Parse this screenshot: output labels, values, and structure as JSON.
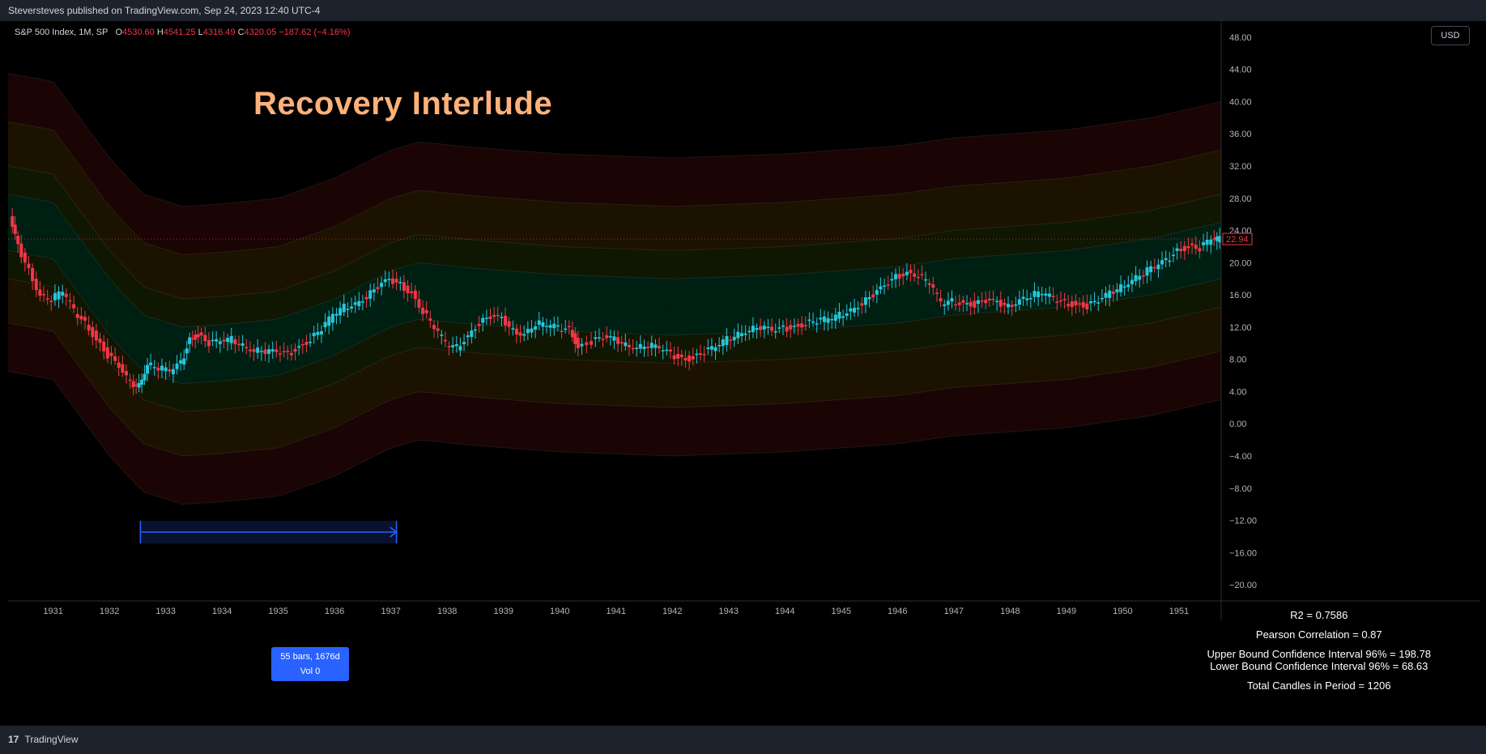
{
  "header": {
    "publisher_line": "Steversteves published on TradingView.com, Sep 24, 2023 12:40 UTC-4"
  },
  "legend": {
    "symbol": "S&P 500 Index, 1M, SP",
    "o_label": "O",
    "o_value": "4530.60",
    "h_label": "H",
    "h_value": "4541.25",
    "l_label": "L",
    "l_value": "4316.49",
    "c_label": "C",
    "c_value": "4320.05",
    "change": "−187.62 (−4.16%)"
  },
  "toolbar": {
    "currency": "USD"
  },
  "annotation": {
    "title": "Recovery Interlude"
  },
  "measure": {
    "bars_line": "55 bars, 1676d",
    "vol_line": "Vol 0"
  },
  "stats": {
    "r2": "R2 = 0.7586",
    "pearson": "Pearson Correlation = 0.87",
    "upper_ci": "Upper Bound Confidence Interval 96% = 198.78",
    "lower_ci": "Lower Bound Confidence Interval 96% = 68.63",
    "total": "Total Candles in Period = 1206"
  },
  "footer": {
    "brand": "TradingView",
    "logo_mark": "17"
  },
  "colors": {
    "up": "#26c6da",
    "down": "#f23645",
    "price_tag": "#f23645"
  },
  "chart_data": {
    "type": "candlestick",
    "title": "S&P 500 Index, 1M, SP",
    "ylim": [
      -22,
      50
    ],
    "xlim": [
      1930.2,
      1951.75
    ],
    "y_ticks": [
      "48.00",
      "44.00",
      "40.00",
      "36.00",
      "32.00",
      "28.00",
      "24.00",
      "20.00",
      "16.00",
      "12.00",
      "8.00",
      "4.00",
      "0.00",
      "−4.00",
      "−8.00",
      "−12.00",
      "−16.00",
      "−20.00"
    ],
    "y_tick_values": [
      48,
      44,
      40,
      36,
      32,
      28,
      24,
      20,
      16,
      12,
      8,
      4,
      0,
      -4,
      -8,
      -12,
      -16,
      -20
    ],
    "x_ticks": [
      "1931",
      "1932",
      "1933",
      "1934",
      "1935",
      "1936",
      "1937",
      "1938",
      "1939",
      "1940",
      "1941",
      "1942",
      "1943",
      "1944",
      "1945",
      "1946",
      "1947",
      "1948",
      "1949",
      "1950",
      "1951"
    ],
    "x_tick_values": [
      1931,
      1932,
      1933,
      1934,
      1935,
      1936,
      1937,
      1938,
      1939,
      1940,
      1941,
      1942,
      1943,
      1944,
      1945,
      1946,
      1947,
      1948,
      1949,
      1950,
      1951
    ],
    "last_price": "22.94",
    "last_price_value": 22.94,
    "close_path": [
      [
        1930.25,
        25.5
      ],
      [
        1930.4,
        22.0
      ],
      [
        1930.6,
        19.0
      ],
      [
        1930.8,
        16.0
      ],
      [
        1931.0,
        15.5
      ],
      [
        1931.2,
        16.5
      ],
      [
        1931.4,
        14.0
      ],
      [
        1931.6,
        12.5
      ],
      [
        1931.8,
        10.5
      ],
      [
        1932.0,
        8.5
      ],
      [
        1932.2,
        7.0
      ],
      [
        1932.4,
        5.0
      ],
      [
        1932.55,
        4.8
      ],
      [
        1932.7,
        7.5
      ],
      [
        1932.9,
        7.0
      ],
      [
        1933.1,
        6.5
      ],
      [
        1933.3,
        7.5
      ],
      [
        1933.45,
        10.5
      ],
      [
        1933.6,
        11.0
      ],
      [
        1933.8,
        10.0
      ],
      [
        1934.0,
        10.2
      ],
      [
        1934.2,
        10.5
      ],
      [
        1934.4,
        9.8
      ],
      [
        1934.6,
        9.2
      ],
      [
        1934.8,
        9.0
      ],
      [
        1935.0,
        8.8
      ],
      [
        1935.2,
        8.6
      ],
      [
        1935.4,
        9.5
      ],
      [
        1935.6,
        10.5
      ],
      [
        1935.8,
        11.8
      ],
      [
        1936.0,
        13.5
      ],
      [
        1936.2,
        14.5
      ],
      [
        1936.4,
        15.0
      ],
      [
        1936.6,
        15.8
      ],
      [
        1936.8,
        17.0
      ],
      [
        1937.0,
        17.8
      ],
      [
        1937.2,
        17.2
      ],
      [
        1937.4,
        16.2
      ],
      [
        1937.6,
        14.0
      ],
      [
        1937.8,
        12.0
      ],
      [
        1938.0,
        10.0
      ],
      [
        1938.2,
        9.5
      ],
      [
        1938.4,
        11.0
      ],
      [
        1938.6,
        12.5
      ],
      [
        1938.8,
        13.2
      ],
      [
        1939.0,
        13.0
      ],
      [
        1939.2,
        11.5
      ],
      [
        1939.4,
        11.2
      ],
      [
        1939.6,
        12.5
      ],
      [
        1939.8,
        12.3
      ],
      [
        1940.0,
        11.9
      ],
      [
        1940.2,
        11.8
      ],
      [
        1940.35,
        9.5
      ],
      [
        1940.6,
        10.2
      ],
      [
        1940.8,
        10.6
      ],
      [
        1941.0,
        10.5
      ],
      [
        1941.2,
        9.8
      ],
      [
        1941.4,
        9.6
      ],
      [
        1941.6,
        9.8
      ],
      [
        1941.8,
        9.4
      ],
      [
        1942.0,
        8.6
      ],
      [
        1942.2,
        8.0
      ],
      [
        1942.4,
        8.2
      ],
      [
        1942.6,
        8.9
      ],
      [
        1942.8,
        9.5
      ],
      [
        1943.0,
        10.5
      ],
      [
        1943.2,
        11.2
      ],
      [
        1943.4,
        11.8
      ],
      [
        1943.6,
        12.0
      ],
      [
        1943.8,
        11.5
      ],
      [
        1944.0,
        11.8
      ],
      [
        1944.2,
        12.0
      ],
      [
        1944.4,
        12.5
      ],
      [
        1944.6,
        12.8
      ],
      [
        1944.8,
        13.0
      ],
      [
        1945.0,
        13.5
      ],
      [
        1945.2,
        14.2
      ],
      [
        1945.4,
        15.0
      ],
      [
        1945.6,
        16.0
      ],
      [
        1945.8,
        17.0
      ],
      [
        1946.0,
        18.2
      ],
      [
        1946.2,
        18.8
      ],
      [
        1946.4,
        18.5
      ],
      [
        1946.6,
        17.5
      ],
      [
        1946.8,
        15.0
      ],
      [
        1947.0,
        15.2
      ],
      [
        1947.2,
        15.0
      ],
      [
        1947.4,
        14.8
      ],
      [
        1947.6,
        15.2
      ],
      [
        1947.8,
        15.0
      ],
      [
        1948.0,
        14.5
      ],
      [
        1948.2,
        15.5
      ],
      [
        1948.4,
        16.0
      ],
      [
        1948.6,
        16.3
      ],
      [
        1948.8,
        15.5
      ],
      [
        1949.0,
        15.0
      ],
      [
        1949.2,
        14.8
      ],
      [
        1949.4,
        14.6
      ],
      [
        1949.6,
        15.2
      ],
      [
        1949.8,
        16.2
      ],
      [
        1950.0,
        17.0
      ],
      [
        1950.2,
        18.0
      ],
      [
        1950.4,
        18.8
      ],
      [
        1950.6,
        19.5
      ],
      [
        1950.8,
        20.2
      ],
      [
        1951.0,
        21.5
      ],
      [
        1951.2,
        22.0
      ],
      [
        1951.4,
        21.8
      ],
      [
        1951.6,
        22.9
      ],
      [
        1951.75,
        22.94
      ]
    ],
    "regression_mid": [
      [
        1930.2,
        25.0
      ],
      [
        1931.0,
        24.0
      ],
      [
        1932.0,
        14.5
      ],
      [
        1932.6,
        10.0
      ],
      [
        1933.3,
        8.5
      ],
      [
        1934.0,
        8.8
      ],
      [
        1935.0,
        9.5
      ],
      [
        1936.0,
        12.0
      ],
      [
        1937.0,
        15.5
      ],
      [
        1937.5,
        16.5
      ],
      [
        1938.5,
        15.8
      ],
      [
        1940.0,
        15.0
      ],
      [
        1942.0,
        14.5
      ],
      [
        1944.0,
        15.0
      ],
      [
        1946.0,
        16.0
      ],
      [
        1947.0,
        17.0
      ],
      [
        1949.0,
        18.0
      ],
      [
        1950.5,
        19.5
      ],
      [
        1951.75,
        21.5
      ]
    ],
    "band_offsets": [
      3.5,
      7,
      12.5,
      18.5
    ],
    "measure_range": [
      1932.55,
      1937.1
    ]
  }
}
